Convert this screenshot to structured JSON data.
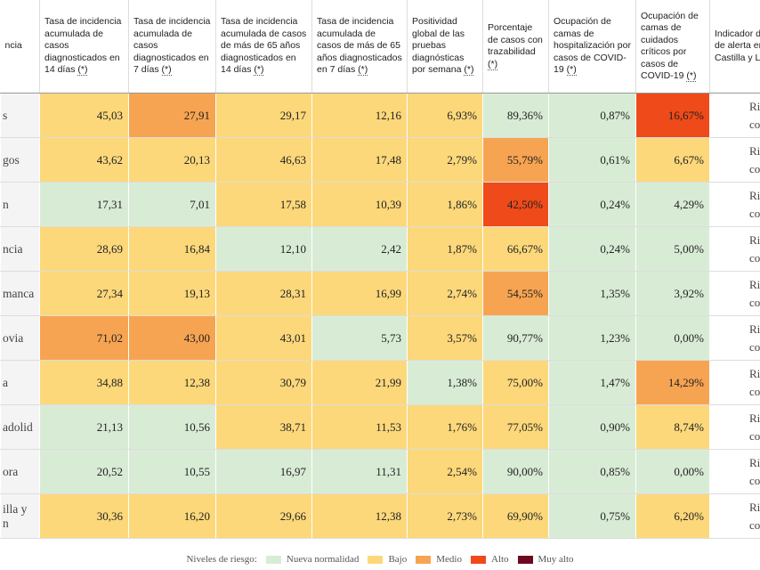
{
  "table": {
    "headers": [
      {
        "label": "ncia"
      },
      {
        "label": "Tasa de incidencia acumulada de casos diagnosticados en 14 días",
        "marker": "(*)"
      },
      {
        "label": "Tasa de incidencia acumulada de casos diagnosticados en 7 días",
        "marker": "(*)"
      },
      {
        "label": "Tasa de incidencia acumulada de casos de más de 65 años diagnosticados en 14 días",
        "marker": "(*)"
      },
      {
        "label": "Tasa de incidencia acumulada de casos de más de 65 años diagnosticados en 7 días",
        "marker": "(*)"
      },
      {
        "label": "Positividad global de las pruebas diagnósticas por semana",
        "marker": "(*)"
      },
      {
        "label": "Porcentaje de casos con trazabilidad",
        "marker": "(*)"
      },
      {
        "label": "Ocupación de camas de hospitalización por casos de COVID-19",
        "marker": "(*)"
      },
      {
        "label": "Ocupación de camas de cuidados críticos por casos de COVID-19",
        "marker": "(*)"
      },
      {
        "label": "Indicador de\nde alerta en\nCastilla y Le"
      }
    ],
    "rows": [
      {
        "name": "s",
        "cells": [
          {
            "text": "45,03",
            "level": 1
          },
          {
            "text": "27,91",
            "level": 2
          },
          {
            "text": "29,17",
            "level": 1
          },
          {
            "text": "12,16",
            "level": 1
          },
          {
            "text": "6,93%",
            "level": 1
          },
          {
            "text": "89,36%",
            "level": 0
          },
          {
            "text": "0,87%",
            "level": 0
          },
          {
            "text": "16,67%",
            "level": 3
          }
        ],
        "indicator": "Ri\ncontro"
      },
      {
        "name": "gos",
        "cells": [
          {
            "text": "43,62",
            "level": 1
          },
          {
            "text": "20,13",
            "level": 1
          },
          {
            "text": "46,63",
            "level": 1
          },
          {
            "text": "17,48",
            "level": 1
          },
          {
            "text": "2,79%",
            "level": 1
          },
          {
            "text": "55,79%",
            "level": 2
          },
          {
            "text": "0,61%",
            "level": 0
          },
          {
            "text": "6,67%",
            "level": 1
          }
        ],
        "indicator": "Ri\ncontro"
      },
      {
        "name": "n",
        "cells": [
          {
            "text": "17,31",
            "level": 0
          },
          {
            "text": "7,01",
            "level": 0
          },
          {
            "text": "17,58",
            "level": 1
          },
          {
            "text": "10,39",
            "level": 1
          },
          {
            "text": "1,86%",
            "level": 1
          },
          {
            "text": "42,50%",
            "level": 3
          },
          {
            "text": "0,24%",
            "level": 0
          },
          {
            "text": "4,29%",
            "level": 0
          }
        ],
        "indicator": "Ri\ncontro"
      },
      {
        "name": "ncia",
        "cells": [
          {
            "text": "28,69",
            "level": 1
          },
          {
            "text": "16,84",
            "level": 1
          },
          {
            "text": "12,10",
            "level": 0
          },
          {
            "text": "2,42",
            "level": 0
          },
          {
            "text": "1,87%",
            "level": 1
          },
          {
            "text": "66,67%",
            "level": 1
          },
          {
            "text": "0,24%",
            "level": 0
          },
          {
            "text": "5,00%",
            "level": 0
          }
        ],
        "indicator": "Ri\ncontro"
      },
      {
        "name": "manca",
        "cells": [
          {
            "text": "27,34",
            "level": 1
          },
          {
            "text": "19,13",
            "level": 1
          },
          {
            "text": "28,31",
            "level": 1
          },
          {
            "text": "16,99",
            "level": 1
          },
          {
            "text": "2,74%",
            "level": 1
          },
          {
            "text": "54,55%",
            "level": 2
          },
          {
            "text": "1,35%",
            "level": 0
          },
          {
            "text": "3,92%",
            "level": 0
          }
        ],
        "indicator": "Ri\ncontro"
      },
      {
        "name": "ovia",
        "cells": [
          {
            "text": "71,02",
            "level": 2
          },
          {
            "text": "43,00",
            "level": 2
          },
          {
            "text": "43,01",
            "level": 1
          },
          {
            "text": "5,73",
            "level": 0
          },
          {
            "text": "3,57%",
            "level": 1
          },
          {
            "text": "90,77%",
            "level": 0
          },
          {
            "text": "1,23%",
            "level": 0
          },
          {
            "text": "0,00%",
            "level": 0
          }
        ],
        "indicator": "Ri\ncontro"
      },
      {
        "name": "a",
        "cells": [
          {
            "text": "34,88",
            "level": 1
          },
          {
            "text": "12,38",
            "level": 1
          },
          {
            "text": "30,79",
            "level": 1
          },
          {
            "text": "21,99",
            "level": 1
          },
          {
            "text": "1,38%",
            "level": 0
          },
          {
            "text": "75,00%",
            "level": 1
          },
          {
            "text": "1,47%",
            "level": 0
          },
          {
            "text": "14,29%",
            "level": 2
          }
        ],
        "indicator": "Ri\ncontro"
      },
      {
        "name": "adolid",
        "cells": [
          {
            "text": "21,13",
            "level": 0
          },
          {
            "text": "10,56",
            "level": 0
          },
          {
            "text": "38,71",
            "level": 1
          },
          {
            "text": "11,53",
            "level": 1
          },
          {
            "text": "1,76%",
            "level": 1
          },
          {
            "text": "77,05%",
            "level": 1
          },
          {
            "text": "0,90%",
            "level": 0
          },
          {
            "text": "8,74%",
            "level": 1
          }
        ],
        "indicator": "Ri\ncontro"
      },
      {
        "name": "ora",
        "cells": [
          {
            "text": "20,52",
            "level": 0
          },
          {
            "text": "10,55",
            "level": 0
          },
          {
            "text": "16,97",
            "level": 0
          },
          {
            "text": "11,31",
            "level": 0
          },
          {
            "text": "2,54%",
            "level": 1
          },
          {
            "text": "90,00%",
            "level": 0
          },
          {
            "text": "0,85%",
            "level": 0
          },
          {
            "text": "0,00%",
            "level": 0
          }
        ],
        "indicator": "Ri\ncontro"
      },
      {
        "name": "illa y\nn",
        "cells": [
          {
            "text": "30,36",
            "level": 1
          },
          {
            "text": "16,20",
            "level": 1
          },
          {
            "text": "29,66",
            "level": 1
          },
          {
            "text": "12,38",
            "level": 1
          },
          {
            "text": "2,73%",
            "level": 1
          },
          {
            "text": "69,90%",
            "level": 1
          },
          {
            "text": "0,75%",
            "level": 0
          },
          {
            "text": "6,20%",
            "level": 1
          }
        ],
        "indicator": "Ri\ncontro"
      }
    ]
  },
  "legend": {
    "title": "Niveles de riesgo:",
    "items": [
      {
        "label": "Nueva normalidad",
        "color": "#d8ecd5"
      },
      {
        "label": "Bajo",
        "color": "#fcd87b"
      },
      {
        "label": "Medio",
        "color": "#f7a452"
      },
      {
        "label": "Alto",
        "color": "#ef4a1a"
      },
      {
        "label": "Muy alto",
        "color": "#6b0a20"
      }
    ]
  }
}
